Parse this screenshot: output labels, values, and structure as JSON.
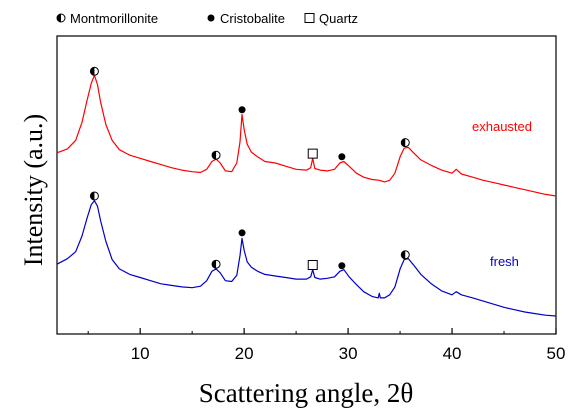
{
  "chart_data": {
    "type": "line",
    "title": "",
    "xlabel": "Scattering angle, 2θ",
    "ylabel": "Intensity (a.u.)",
    "xlim": [
      2,
      50
    ],
    "xticks": [
      10,
      20,
      30,
      40,
      50
    ],
    "y_tick_labels_shown": false,
    "grid": false,
    "legend": {
      "placement": "top-left",
      "entries": [
        {
          "label": "Montmorillonite",
          "marker": "half-filled-circle"
        },
        {
          "label": "Cristobalite",
          "marker": "filled-circle"
        },
        {
          "label": "Quartz",
          "marker": "open-square"
        }
      ]
    },
    "series": [
      {
        "name": "exhausted",
        "color": "#ff0000",
        "x": [
          2,
          3,
          3.8,
          4.4,
          4.9,
          5.3,
          5.6,
          5.9,
          6.2,
          6.7,
          7.3,
          8,
          9,
          10,
          11,
          12,
          13,
          14,
          15,
          15.8,
          16.4,
          16.9,
          17.3,
          17.7,
          18.2,
          18.8,
          19.3,
          19.6,
          19.8,
          20,
          20.3,
          20.7,
          21.3,
          22,
          23,
          24,
          25,
          26,
          26.4,
          26.6,
          26.8,
          27.3,
          28,
          28.7,
          29.2,
          29.6,
          30.1,
          30.8,
          31.5,
          32.3,
          33,
          33.5,
          34,
          34.5,
          35,
          35.4,
          35.8,
          36.3,
          37,
          38,
          39,
          40,
          40.4,
          40.9,
          42,
          43,
          44,
          45,
          46,
          47,
          48,
          49,
          50
        ],
        "y": [
          101,
          106,
          117,
          140,
          168,
          190,
          200,
          188,
          165,
          137,
          117,
          105,
          98,
          94,
          90,
          86,
          82,
          79,
          77,
          76,
          80,
          90,
          93,
          88,
          78,
          77,
          88,
          115,
          150,
          131,
          112,
          102,
          96,
          90,
          88,
          84,
          80,
          79,
          82,
          94,
          81,
          79,
          78,
          80,
          88,
          90,
          84,
          75,
          70,
          67,
          66,
          64,
          66,
          75,
          96,
          107,
          108,
          101,
          92,
          85,
          79,
          75,
          80,
          74,
          70,
          66,
          63,
          60,
          57,
          54,
          51,
          48,
          46
        ]
      },
      {
        "name": "fresh",
        "color": "#0000cc",
        "x": [
          2,
          3,
          3.8,
          4.4,
          4.9,
          5.3,
          5.6,
          5.9,
          6.2,
          6.7,
          7.3,
          8,
          9,
          10,
          11,
          12,
          13,
          14,
          15,
          15.8,
          16.4,
          16.9,
          17.3,
          17.7,
          18.2,
          18.8,
          19.3,
          19.6,
          19.8,
          20,
          20.3,
          20.7,
          21.3,
          22,
          23,
          24,
          25,
          26,
          26.4,
          26.6,
          26.8,
          27.3,
          28,
          28.7,
          29.2,
          29.6,
          30.1,
          30.8,
          31.5,
          32.3,
          32.9,
          33,
          33.1,
          33.5,
          34,
          34.5,
          35,
          35.4,
          35.8,
          36.3,
          37,
          38,
          39,
          40,
          40.4,
          40.9,
          42,
          43,
          44,
          45,
          46,
          47,
          48,
          49,
          50
        ],
        "y": [
          -41,
          -34,
          -25,
          -5,
          18,
          35,
          40,
          33,
          14,
          -12,
          -35,
          -47,
          -54,
          -58,
          -62,
          -66,
          -68,
          -70,
          -71,
          -69,
          -62,
          -50,
          -47,
          -52,
          -62,
          -63,
          -55,
          -30,
          -8,
          -23,
          -38,
          -45,
          -50,
          -54,
          -56,
          -58,
          -60,
          -60,
          -57,
          -48,
          -58,
          -60,
          -59,
          -57,
          -50,
          -48,
          -57,
          -67,
          -76,
          -82,
          -84,
          -78,
          -84,
          -84,
          -80,
          -70,
          -47,
          -35,
          -34,
          -42,
          -54,
          -66,
          -75,
          -80,
          -76,
          -80,
          -84,
          -88,
          -92,
          -96,
          -99,
          -102,
          -104,
          -106,
          -107
        ]
      }
    ],
    "series_labels": [
      "exhausted",
      "fresh"
    ],
    "annotations": [
      {
        "symbol": "half-filled-circle",
        "x": 5.6,
        "y": 205
      },
      {
        "symbol": "half-filled-circle",
        "x": 17.3,
        "y": 98
      },
      {
        "symbol": "filled-circle",
        "x": 19.8,
        "y": 156
      },
      {
        "symbol": "open-square",
        "x": 26.6,
        "y": 100
      },
      {
        "symbol": "filled-circle",
        "x": 29.4,
        "y": 96
      },
      {
        "symbol": "half-filled-circle",
        "x": 35.5,
        "y": 114
      },
      {
        "symbol": "half-filled-circle",
        "x": 5.6,
        "y": 46
      },
      {
        "symbol": "half-filled-circle",
        "x": 17.3,
        "y": -41
      },
      {
        "symbol": "filled-circle",
        "x": 19.8,
        "y": -1
      },
      {
        "symbol": "open-square",
        "x": 26.6,
        "y": -42
      },
      {
        "symbol": "filled-circle",
        "x": 29.4,
        "y": -43
      },
      {
        "symbol": "half-filled-circle",
        "x": 35.5,
        "y": -29
      }
    ],
    "ylim": [
      -130,
      250
    ]
  }
}
